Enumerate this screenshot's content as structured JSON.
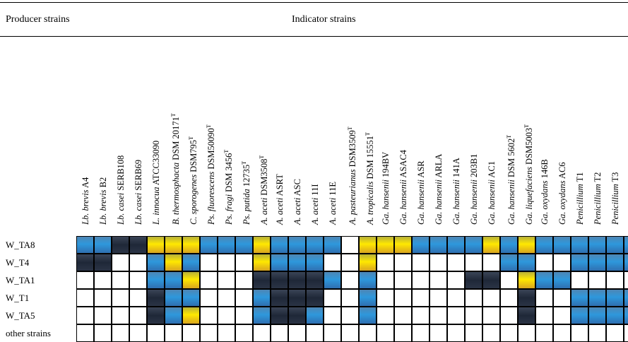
{
  "header": {
    "producer_label": "Producer strains",
    "indicator_label": "Indicator strains"
  },
  "columns": [
    {
      "genus": "Lb. brevis",
      "rest": " A4",
      "sup": ""
    },
    {
      "genus": "Lb. brevis",
      "rest": " B2",
      "sup": ""
    },
    {
      "genus": "Lb. casei",
      "rest": " SERB108",
      "sup": ""
    },
    {
      "genus": "Lb. casei",
      "rest": " SERB69",
      "sup": ""
    },
    {
      "genus": "L. innocua",
      "rest": " ATCC33090",
      "sup": ""
    },
    {
      "genus": "B. thermosphacta",
      "rest": " DSM 20171",
      "sup": "T"
    },
    {
      "genus": "C. sporogenes",
      "rest": " DSM795",
      "sup": "T"
    },
    {
      "genus": "Ps. fluorescens",
      "rest": " DSM50090",
      "sup": "T"
    },
    {
      "genus": "Ps. fragi",
      "rest": " DSM 3456",
      "sup": "T"
    },
    {
      "genus": "Ps. putida",
      "rest": " 12735",
      "sup": "T"
    },
    {
      "genus": "A. aceti",
      "rest": " DSM3508",
      "sup": "T"
    },
    {
      "genus": "A. aceti",
      "rest": " ASRT",
      "sup": ""
    },
    {
      "genus": "A. aceti",
      "rest": " ASC",
      "sup": ""
    },
    {
      "genus": "A. aceti",
      "rest": " 11I",
      "sup": ""
    },
    {
      "genus": "A. aceti",
      "rest": " 11E",
      "sup": ""
    },
    {
      "genus": "A. pasteurianus",
      "rest": " DSM3509",
      "sup": "T"
    },
    {
      "genus": "A. tropicalis",
      "rest": " DSM 15551",
      "sup": "T"
    },
    {
      "genus": "Ga. hansenii",
      "rest": " 194BV",
      "sup": ""
    },
    {
      "genus": "Ga. hansenii",
      "rest": " ASAC4",
      "sup": ""
    },
    {
      "genus": "Ga. hansenii",
      "rest": " ASR",
      "sup": ""
    },
    {
      "genus": "Ga. hansenii",
      "rest": " ARLA",
      "sup": ""
    },
    {
      "genus": "Ga. hansenii",
      "rest": " 141A",
      "sup": ""
    },
    {
      "genus": "Ga. hansenii",
      "rest": " 203B1",
      "sup": ""
    },
    {
      "genus": "Ga. hansenii",
      "rest": " AC1",
      "sup": ""
    },
    {
      "genus": "Ga. hansenii",
      "rest": " DSM 5602",
      "sup": "T"
    },
    {
      "genus": "Ga. liquefaciens",
      "rest": " DSM5003",
      "sup": "T"
    },
    {
      "genus": "Ga. oxydans",
      "rest": " 146B",
      "sup": ""
    },
    {
      "genus": "Ga. oxydans",
      "rest": " AC6",
      "sup": ""
    },
    {
      "genus": "Penicillium",
      "rest": " T1",
      "sup": ""
    },
    {
      "genus": "Penicillium",
      "rest": " T2",
      "sup": ""
    },
    {
      "genus": "Penicillium",
      "rest": " T3",
      "sup": ""
    },
    {
      "genus": "Penicillium",
      "rest": " T4",
      "sup": ""
    },
    {
      "genus": "Penicillium",
      "rest": " T5",
      "sup": ""
    }
  ],
  "legend_colors": {
    "blue": "#2e98dc",
    "yellow": "#ffe800",
    "dark": "#1f2838",
    "empty": "#ffffff"
  },
  "rows": [
    {
      "label": "W_TA8",
      "cells": [
        1,
        1,
        3,
        3,
        2,
        2,
        2,
        1,
        1,
        1,
        2,
        1,
        1,
        1,
        1,
        0,
        2,
        2,
        2,
        1,
        1,
        1,
        1,
        2,
        1,
        2,
        1,
        1,
        1,
        1,
        1,
        1,
        1
      ]
    },
    {
      "label": "W_T4",
      "cells": [
        3,
        3,
        0,
        0,
        1,
        2,
        1,
        0,
        0,
        0,
        2,
        1,
        1,
        1,
        0,
        0,
        2,
        0,
        0,
        0,
        0,
        0,
        0,
        0,
        1,
        1,
        0,
        0,
        1,
        1,
        1,
        1,
        1
      ]
    },
    {
      "label": "W_TA1",
      "cells": [
        0,
        0,
        0,
        0,
        1,
        1,
        2,
        0,
        0,
        0,
        3,
        3,
        3,
        3,
        1,
        0,
        1,
        0,
        0,
        0,
        0,
        0,
        3,
        3,
        0,
        2,
        1,
        1,
        0,
        0,
        0,
        0,
        0
      ]
    },
    {
      "label": "W_T1",
      "cells": [
        0,
        0,
        0,
        0,
        3,
        1,
        1,
        0,
        0,
        0,
        1,
        3,
        3,
        3,
        0,
        0,
        1,
        0,
        0,
        0,
        0,
        0,
        0,
        0,
        0,
        3,
        0,
        0,
        1,
        1,
        1,
        1,
        1
      ]
    },
    {
      "label": "W_TA5",
      "cells": [
        0,
        0,
        0,
        0,
        3,
        1,
        2,
        0,
        0,
        0,
        1,
        3,
        3,
        1,
        0,
        0,
        1,
        0,
        0,
        0,
        0,
        0,
        0,
        0,
        0,
        3,
        0,
        0,
        1,
        1,
        1,
        1,
        1
      ]
    },
    {
      "label": "other strains",
      "cells": [
        0,
        0,
        0,
        0,
        0,
        0,
        0,
        0,
        0,
        0,
        0,
        0,
        0,
        0,
        0,
        0,
        0,
        0,
        0,
        0,
        0,
        0,
        0,
        0,
        0,
        0,
        0,
        0,
        0,
        0,
        0,
        0,
        0
      ]
    }
  ]
}
